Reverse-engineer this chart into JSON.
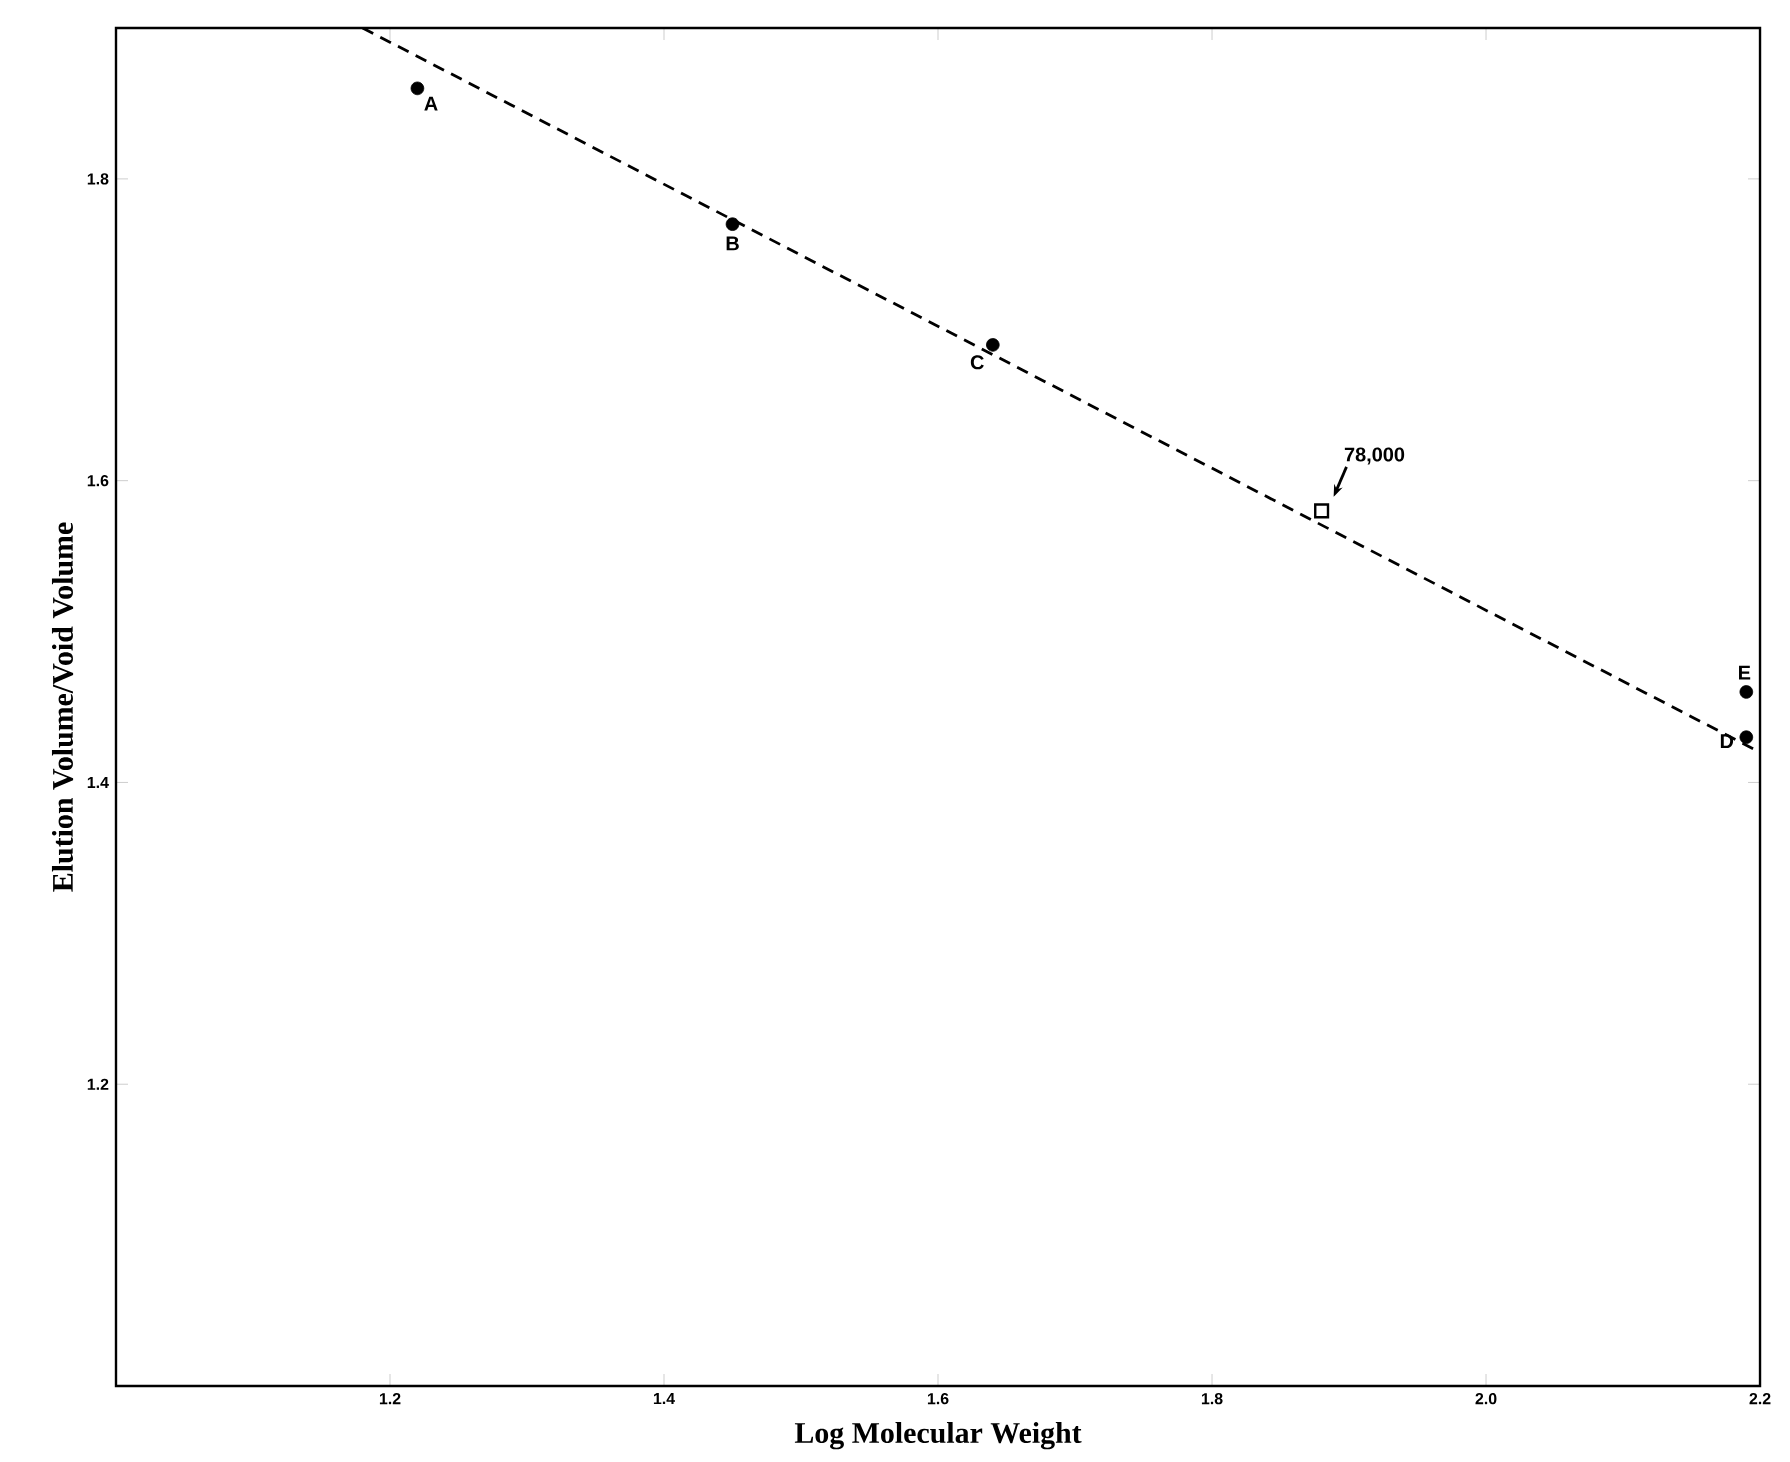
{
  "chart_data": {
    "type": "scatter",
    "xlabel": "Log Molecular Weight",
    "ylabel": "Elution Volume/Void Volume",
    "xlim": [
      1.0,
      2.2
    ],
    "ylim": [
      1.0,
      1.9
    ],
    "xticks": [
      1.2,
      1.4,
      1.6,
      1.8,
      {
        "value": 2.0,
        "label": "2.0"
      },
      2.2
    ],
    "yticks": [
      1.2,
      1.4,
      1.6,
      1.8
    ],
    "grid": false,
    "series": [
      {
        "marker": "circle",
        "color": "#000000",
        "x": [
          1.22,
          1.45,
          1.64,
          2.19,
          2.19
        ],
        "values": [
          1.86,
          1.77,
          1.69,
          1.43,
          1.46
        ]
      },
      {
        "marker": "square",
        "color": "#000000",
        "x": [
          1.88
        ],
        "values": [
          1.58
        ]
      },
      {
        "type": "line",
        "marker": "none",
        "line_style": "dashed",
        "color": "#000000",
        "x": [
          1.18,
          2.2
        ],
        "values": [
          1.9,
          1.42
        ]
      }
    ],
    "annotations": [
      {
        "text": "A",
        "x": 1.22,
        "y": 1.86
      },
      {
        "text": "B",
        "x": 1.45,
        "y": 1.77
      },
      {
        "text": "C",
        "x": 1.64,
        "y": 1.69
      },
      {
        "text": "D",
        "x": 2.19,
        "y": 1.43
      },
      {
        "text": "E",
        "x": 2.19,
        "y": 1.46
      },
      {
        "text": "78,000",
        "x": 1.88,
        "y": 1.58
      }
    ]
  }
}
